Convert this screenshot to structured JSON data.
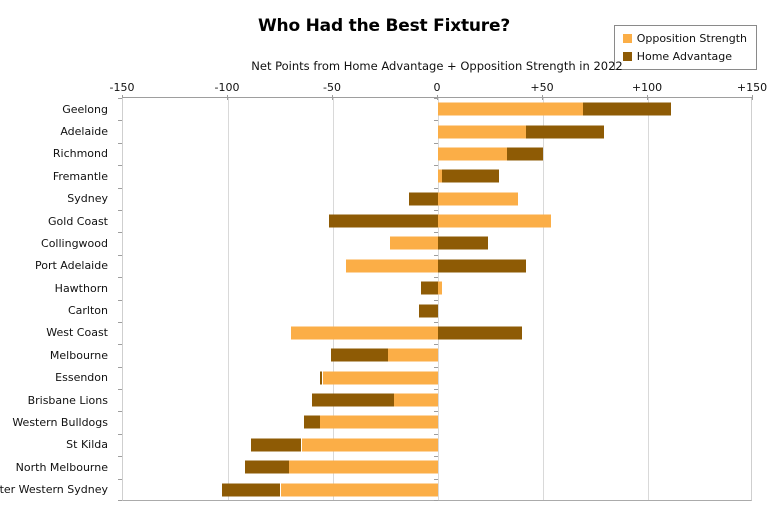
{
  "colors": {
    "opposition": "#FBAE47",
    "home": "#8E5B05",
    "gridline": "#d9d9d9",
    "axis_line": "#9e9e9e"
  },
  "chart_data": {
    "type": "bar",
    "orientation": "horizontal",
    "stacked": true,
    "title": "Who Had the Best Fixture?",
    "subtitle": "Net Points from Home Advantage + Opposition Strength in 2022",
    "categories": [
      "Geelong",
      "Adelaide",
      "Richmond",
      "Fremantle",
      "Sydney",
      "Gold Coast",
      "Collingwood",
      "Port Adelaide",
      "Hawthorn",
      "Carlton",
      "West Coast",
      "Melbourne",
      "Essendon",
      "Brisbane Lions",
      "Western Bulldogs",
      "St Kilda",
      "North Melbourne",
      "Greater Western Sydney"
    ],
    "series": [
      {
        "name": "Opposition Strength",
        "values": [
          69,
          42,
          33,
          2,
          38,
          54,
          -23,
          -44,
          2,
          0,
          -70,
          -24,
          -55,
          -21,
          -56,
          -65,
          -71,
          -75
        ]
      },
      {
        "name": "Home Advantage",
        "values": [
          42,
          37,
          17,
          27,
          -14,
          -52,
          24,
          42,
          -8,
          -9,
          40,
          -27,
          -1,
          -39,
          -8,
          -24,
          -21,
          -28
        ]
      }
    ],
    "xlim": [
      -150,
      150
    ],
    "xtick_step": 50,
    "xticks": [
      "-150",
      "-100",
      "-50",
      "0",
      "+50",
      "+100",
      "+150"
    ],
    "grid": true,
    "legend_position": "top-right"
  }
}
